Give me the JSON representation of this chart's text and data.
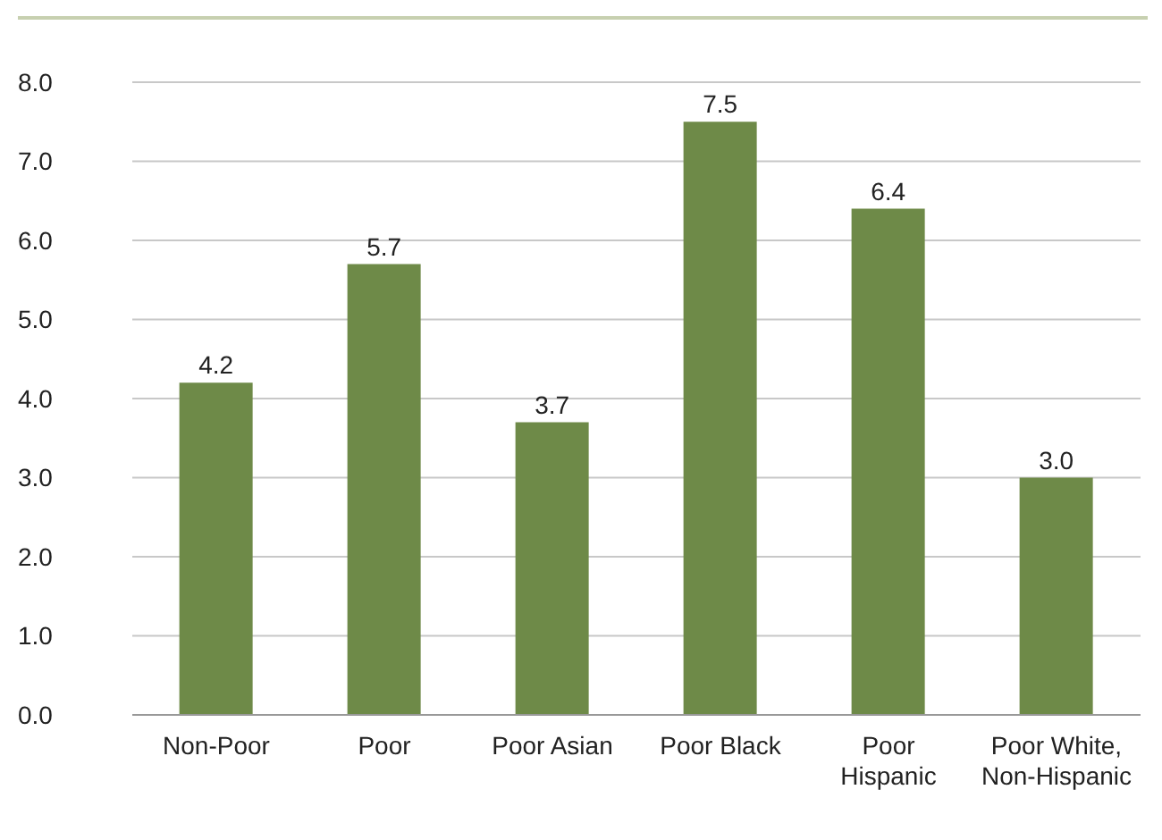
{
  "chart_data": {
    "type": "bar",
    "categories": [
      "Non-Poor",
      "Poor",
      "Poor Asian",
      "Poor Black",
      "Poor Hispanic",
      "Poor White, Non-Hispanic"
    ],
    "values": [
      4.2,
      5.7,
      3.7,
      7.5,
      6.4,
      3.0
    ],
    "color": "#6e8a48",
    "value_labels": [
      "4.2",
      "5.7",
      "3.7",
      "7.5",
      "6.4",
      "3.0"
    ],
    "ylim": [
      0,
      8
    ],
    "yticks": [
      {
        "value": 0,
        "label": "0.0"
      },
      {
        "value": 1,
        "label": "1.0"
      },
      {
        "value": 2,
        "label": "2.0"
      },
      {
        "value": 3,
        "label": "3.0"
      },
      {
        "value": 4,
        "label": "4.0"
      },
      {
        "value": 5,
        "label": "5.0"
      },
      {
        "value": 6,
        "label": "6.0"
      },
      {
        "value": 7,
        "label": "7.0"
      },
      {
        "value": 8,
        "label": "8.0"
      }
    ],
    "grid": "y"
  }
}
